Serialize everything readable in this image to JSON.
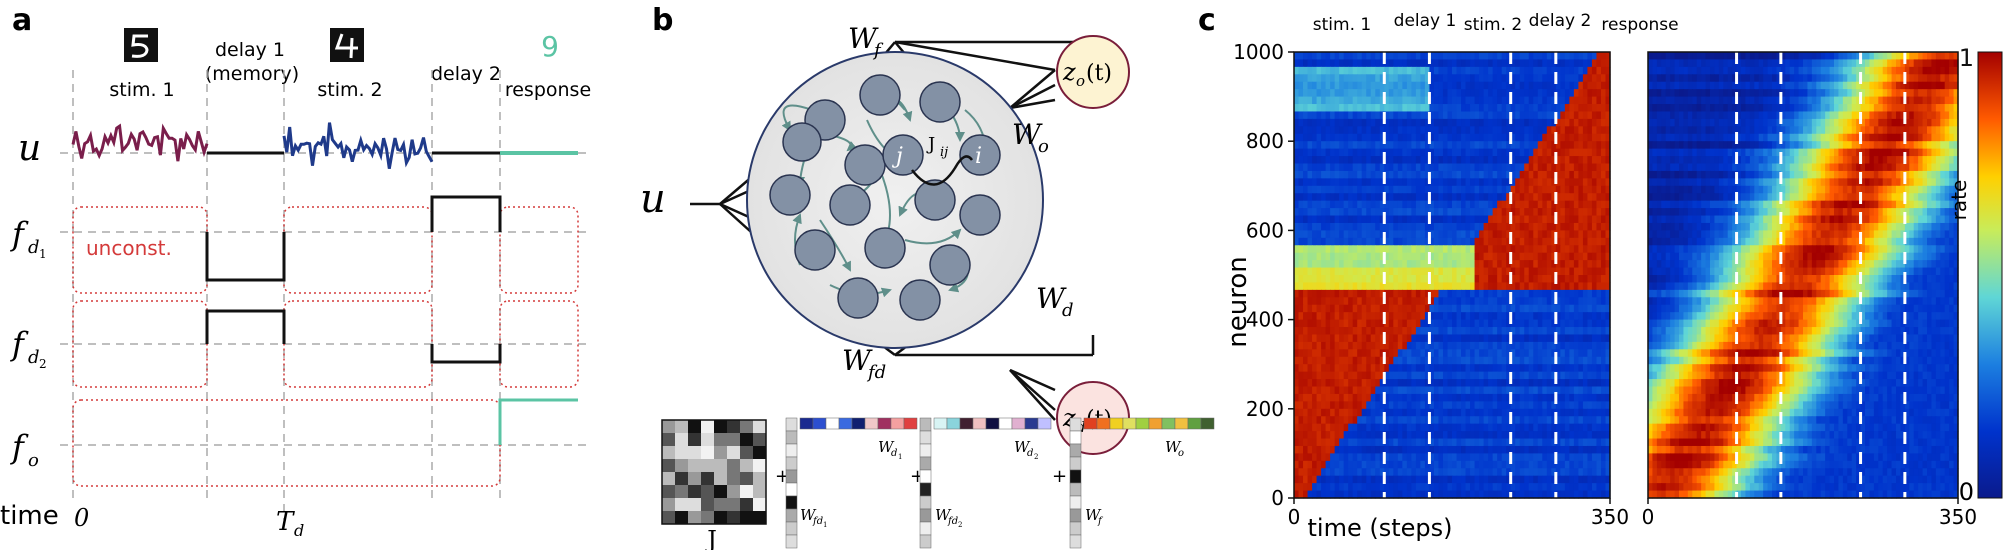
{
  "panel_a": {
    "label": "a",
    "epoch_labels": {
      "stim1": "stim. 1",
      "delay1": "delay 1",
      "delay1_sub": "(memory)",
      "stim2": "stim. 2",
      "delay2": "delay 2",
      "response": "response",
      "response_digit": "9"
    },
    "row_labels": {
      "u": "u",
      "fd1": "f",
      "fd1_sub": "d",
      "fd1_subsub": "1",
      "fd2": "f",
      "fd2_sub": "d",
      "fd2_subsub": "2",
      "fo": "f",
      "fo_sub": "o"
    },
    "time_label": "time",
    "time_zero": "0",
    "time_Td": "T",
    "time_Td_sub": "d",
    "unconstrained_label": "unconst.",
    "colors": {
      "stim1": "#7a1e4b",
      "stim2": "#1f3a8a",
      "response": "#5bc4a4",
      "unconst": "#d43a3a"
    }
  },
  "panel_b": {
    "label": "b",
    "input_label": "u",
    "Wf": "W",
    "Wf_sub": "f",
    "Wo": "W",
    "Wo_sub": "o",
    "Wd": "W",
    "Wd_sub": "d",
    "Wfd": "W",
    "Wfd_sub": "fd",
    "zo": "z",
    "zo_sub": "o",
    "zo_arg": "(t)",
    "zd": "z",
    "zd_sub": "d",
    "zd_arg": "(t)",
    "node_j": "j",
    "node_i": "i",
    "Jij": "J",
    "Jij_sub": "ij",
    "matrix_J_label": "J",
    "matrix_labels": {
      "Wd1": "W",
      "Wd1_sub": "d",
      "Wd1_subsub": "1",
      "Wfd1": "W",
      "Wfd1_sub": "fd",
      "Wfd1_subsub": "1",
      "Wd2": "W",
      "Wd2_sub": "d",
      "Wd2_subsub": "2",
      "Wfd2": "W",
      "Wfd2_sub": "fd",
      "Wfd2_subsub": "2",
      "Wo2": "W",
      "Wo2_sub": "o",
      "Wf2": "W",
      "Wf2_sub": "f"
    },
    "plus": "+",
    "colors": {
      "zo_fill": "#fdf3d2",
      "zd_fill": "#fbe3e0",
      "net_fill": "#ececec",
      "node_fill": "#8391a5",
      "edge": "#5f8f8a"
    }
  },
  "panel_c": {
    "label": "c",
    "ylabel": "neuron",
    "xlabel": "time (steps)",
    "colorbar_label": "rate",
    "colorbar_ticks": [
      "1",
      "0"
    ],
    "epoch_labels": [
      "stim. 1",
      "delay 1",
      "stim. 2",
      "delay 2",
      "response"
    ],
    "chart_data": [
      {
        "type": "heatmap",
        "xlim": [
          0,
          350
        ],
        "ylim": [
          0,
          1000
        ],
        "xticks": [
          "0",
          "350"
        ],
        "yticks": [
          "0",
          "200",
          "400",
          "600",
          "800",
          "1000"
        ],
        "xlabel": "time (steps)",
        "ylabel": "neuron",
        "epoch_boundaries": [
          100,
          150,
          240,
          290
        ],
        "colorbar_range": [
          0,
          1
        ]
      },
      {
        "type": "heatmap",
        "xlim": [
          0,
          350
        ],
        "ylim": [
          0,
          1000
        ],
        "xticks": [
          "0",
          "350"
        ],
        "epoch_boundaries": [
          100,
          150,
          240,
          290
        ],
        "colorbar_range": [
          0,
          1
        ]
      }
    ]
  }
}
